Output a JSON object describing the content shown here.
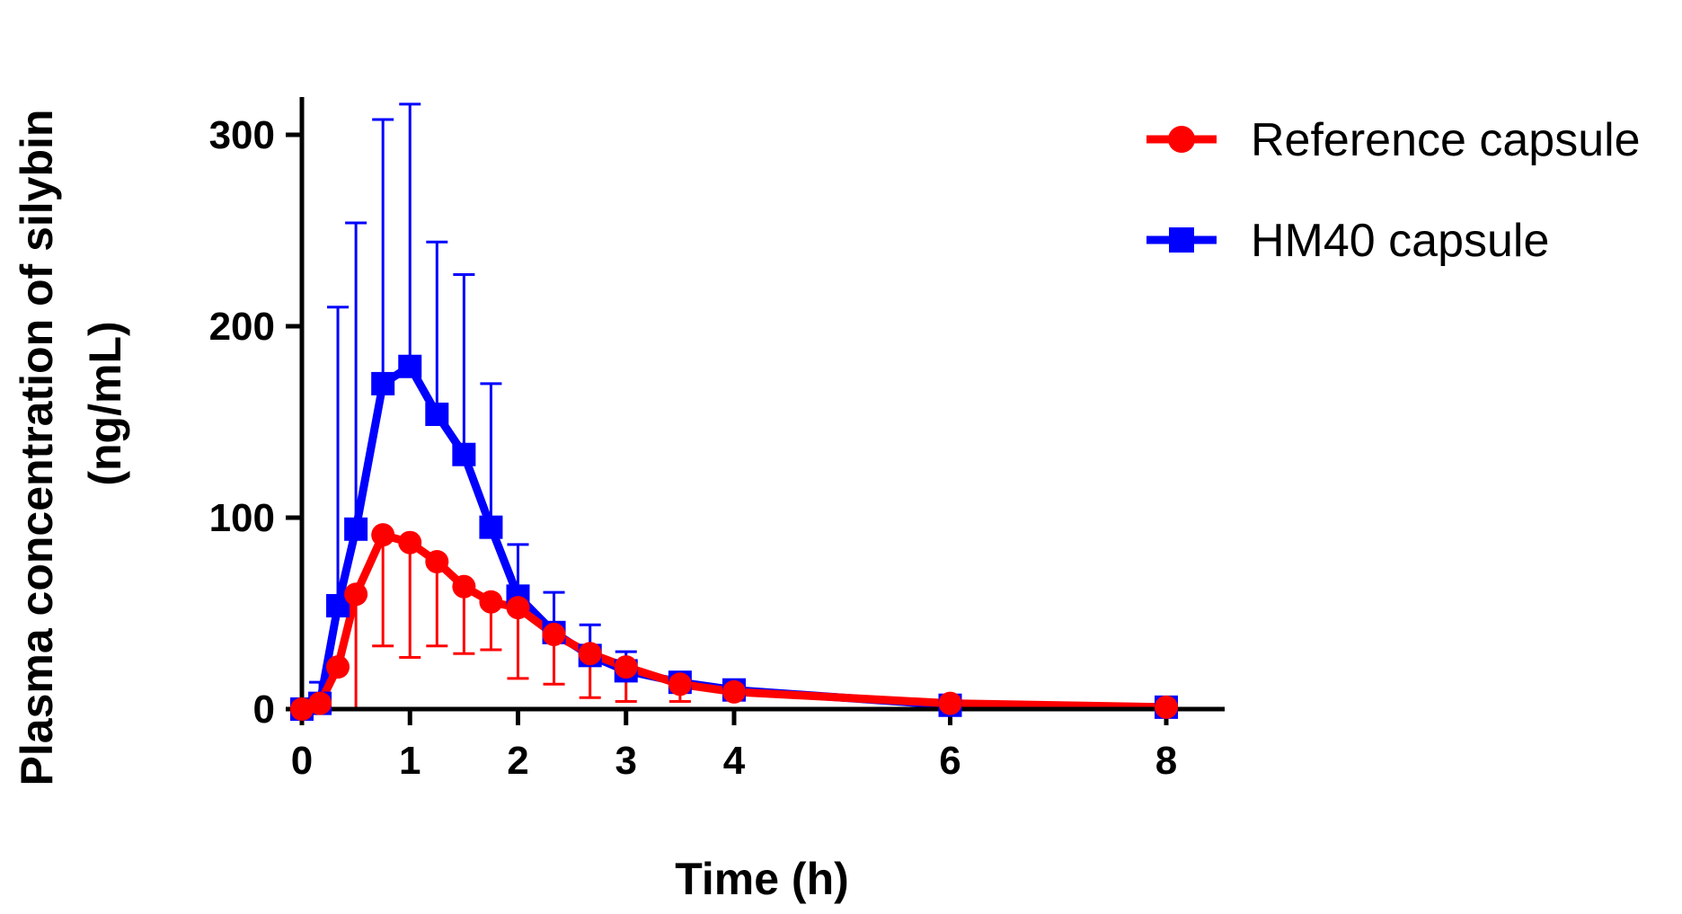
{
  "chart_data": {
    "type": "line",
    "title": "",
    "xlabel": "Time (h)",
    "ylabel_line1": "Plasma concentration of silybin",
    "ylabel_line2": "(ng/mL)",
    "xlim": [
      0,
      8.5
    ],
    "ylim": [
      0,
      320
    ],
    "xticks": [
      0,
      1,
      2,
      3,
      4,
      6,
      8
    ],
    "xtick_labels": [
      "0",
      "1",
      "2",
      "3",
      "4",
      "6",
      "8"
    ],
    "yticks": [
      0,
      100,
      200,
      300
    ],
    "ytick_labels": [
      "0",
      "100",
      "200",
      "300"
    ],
    "legend_position": "top-right",
    "series": [
      {
        "name": "Reference capsule",
        "color": "#ff0000",
        "marker": "circle",
        "error_bar_direction": "down",
        "x": [
          0,
          0.167,
          0.333,
          0.5,
          0.75,
          1,
          1.25,
          1.5,
          1.75,
          2,
          2.333,
          2.667,
          3,
          3.5,
          4,
          6,
          8
        ],
        "values": [
          0,
          3,
          22,
          60,
          91,
          87,
          77,
          64,
          56,
          53,
          39,
          29,
          22,
          13,
          9,
          3,
          1
        ],
        "errors": [
          0,
          0,
          0,
          60,
          58,
          60,
          44,
          35,
          25,
          37,
          26,
          23,
          18,
          9,
          0,
          0,
          0
        ]
      },
      {
        "name": "HM40 capsule",
        "color": "#0000ff",
        "marker": "square",
        "error_bar_direction": "up",
        "x": [
          0,
          0.167,
          0.333,
          0.5,
          0.75,
          1,
          1.25,
          1.5,
          1.75,
          2,
          2.333,
          2.667,
          3,
          3.5,
          4,
          6,
          8
        ],
        "values": [
          0,
          3,
          54,
          94,
          170,
          179,
          154,
          133,
          95,
          59,
          40,
          28,
          20,
          14,
          10,
          2,
          1
        ],
        "errors": [
          0,
          11,
          156,
          160,
          138,
          137,
          90,
          94,
          75,
          27,
          21,
          16,
          10,
          0,
          0,
          0,
          0
        ]
      }
    ]
  }
}
